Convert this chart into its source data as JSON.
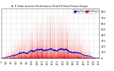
{
  "title": "A. P. Solar Inverter Performance Total PV Panel Power Output",
  "bg_color": "#ffffff",
  "plot_bg": "#ffffff",
  "grid_color": "#aaaaaa",
  "bar_color": "#dd0000",
  "line_color": "#0000cc",
  "ylim": [
    0,
    860
  ],
  "yticks": [
    0,
    100,
    200,
    300,
    400,
    500,
    600,
    700,
    800
  ],
  "n_points": 4000,
  "legend_colors": [
    "#0000cc",
    "#dd0000"
  ],
  "legend_labels": [
    "Avg Power",
    "Total Power"
  ]
}
